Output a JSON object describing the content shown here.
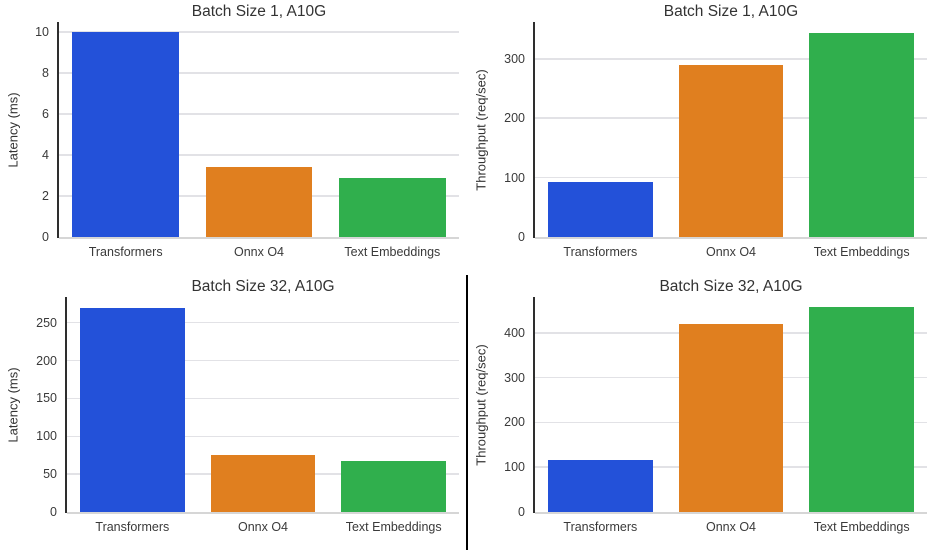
{
  "figure": {
    "background": "#ffffff",
    "divider_color": "#000000"
  },
  "palette": {
    "bar_colors": [
      "#2351d9",
      "#e07f1f",
      "#30af4d"
    ],
    "grid_color": "#e2e2e6",
    "spine_color": "#2e2e2e",
    "baseline_color": "#d6d6d6",
    "title_color": "#333333",
    "tick_color": "#3a3a3a"
  },
  "chart_data": [
    {
      "type": "bar",
      "position": "top-left",
      "title": "Batch Size 1, A10G",
      "ylabel": "Latency (ms)",
      "xlabel": "",
      "categories": [
        "Transformers",
        "Onnx O4",
        "Text Embeddings"
      ],
      "values": [
        10.0,
        3.4,
        2.9
      ],
      "yticks": [
        0,
        2,
        4,
        6,
        8,
        10
      ],
      "ylim": [
        0,
        10.5
      ],
      "grid": "horizontal",
      "legend": "none"
    },
    {
      "type": "bar",
      "position": "top-right",
      "title": "Batch Size 1, A10G",
      "ylabel": "Throughput (req/sec)",
      "xlabel": "",
      "categories": [
        "Transformers",
        "Onnx O4",
        "Text Embeddings"
      ],
      "values": [
        92,
        290,
        344
      ],
      "yticks": [
        0,
        100,
        200,
        300
      ],
      "ylim": [
        0,
        362
      ],
      "grid": "horizontal",
      "legend": "none"
    },
    {
      "type": "bar",
      "position": "bottom-left",
      "title": "Batch Size 32, A10G",
      "ylabel": "Latency (ms)",
      "xlabel": "",
      "categories": [
        "Transformers",
        "Onnx O4",
        "Text Embeddings"
      ],
      "values": [
        270,
        75,
        68
      ],
      "yticks": [
        0,
        50,
        100,
        150,
        200,
        250
      ],
      "ylim": [
        0,
        284
      ],
      "grid": "horizontal",
      "legend": "none"
    },
    {
      "type": "bar",
      "position": "bottom-right",
      "title": "Batch Size 32, A10G",
      "ylabel": "Throughput (req/sec)",
      "xlabel": "",
      "categories": [
        "Transformers",
        "Onnx O4",
        "Text Embeddings"
      ],
      "values": [
        115,
        420,
        457
      ],
      "yticks": [
        0,
        100,
        200,
        300,
        400
      ],
      "ylim": [
        0,
        480
      ],
      "grid": "horizontal",
      "legend": "none"
    }
  ]
}
